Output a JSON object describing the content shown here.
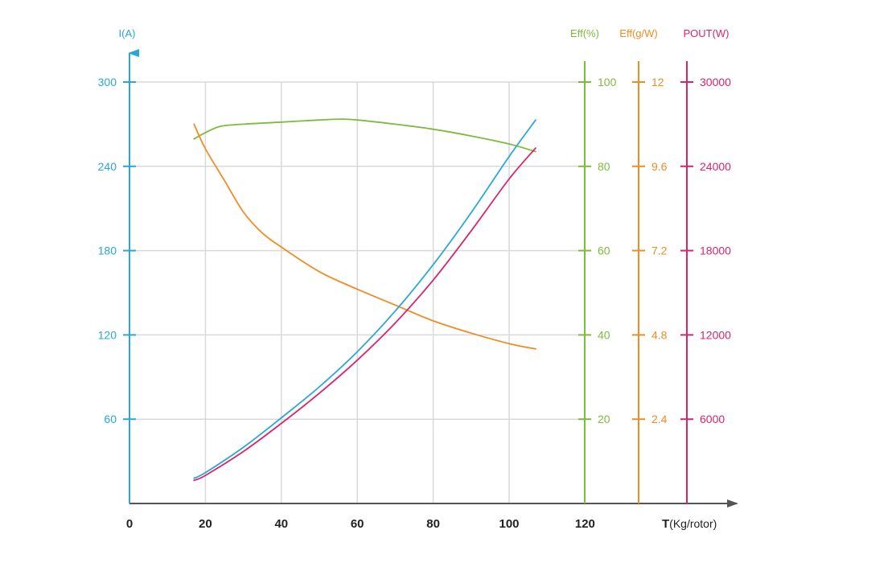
{
  "chart_data": {
    "type": "line",
    "title": "",
    "grid": true,
    "x_axis": {
      "label_bold": "T",
      "label_unit": "(Kg/rotor)",
      "ticks": [
        "0",
        "20",
        "40",
        "60",
        "80",
        "100",
        "120"
      ],
      "range": [
        0,
        120
      ]
    },
    "y_axes": [
      {
        "id": "I",
        "label": "I(A)",
        "color": "#2aa7d8",
        "range": [
          0,
          300
        ],
        "ticks": [
          "60",
          "120",
          "180",
          "240",
          "300"
        ]
      },
      {
        "id": "effp",
        "label": "Eff(%)",
        "color": "#7dbb3c",
        "range": [
          0,
          100
        ],
        "ticks": [
          "20",
          "40",
          "60",
          "80",
          "100"
        ]
      },
      {
        "id": "effg",
        "label": "Eff(g/W)",
        "color": "#f08c26",
        "range": [
          0,
          12
        ],
        "ticks": [
          "2.4",
          "4.8",
          "7.2",
          "9.6",
          "12"
        ]
      },
      {
        "id": "pout",
        "label": "POUT(W)",
        "color": "#d8246e",
        "range": [
          0,
          30000
        ],
        "ticks": [
          "6000",
          "12000",
          "18000",
          "24000",
          "30000"
        ]
      }
    ],
    "series": [
      {
        "axis": "effp",
        "color": "#7dbb3c",
        "x": [
          17,
          20,
          24,
          30,
          40,
          50,
          56,
          60,
          70,
          80,
          90,
          100,
          107
        ],
        "y": [
          86.5,
          88,
          89.5,
          90,
          90.5,
          91,
          91.2,
          91,
          90,
          88.8,
          87.2,
          85.3,
          83.5
        ]
      },
      {
        "axis": "effg",
        "color": "#f08c26",
        "x": [
          17,
          20,
          25,
          30,
          35,
          40,
          50,
          60,
          70,
          80,
          90,
          100,
          107
        ],
        "y": [
          10.8,
          10.1,
          9.2,
          8.3,
          7.7,
          7.3,
          6.6,
          6.1,
          5.65,
          5.2,
          4.85,
          4.55,
          4.4
        ]
      },
      {
        "axis": "I",
        "color": "#2aa7d8",
        "x": [
          17,
          20,
          30,
          40,
          50,
          60,
          70,
          80,
          90,
          100,
          107
        ],
        "y": [
          18,
          22,
          40,
          61,
          83,
          108,
          137,
          170,
          207,
          247,
          273
        ]
      },
      {
        "axis": "pout",
        "color": "#d8246e",
        "x": [
          17,
          20,
          30,
          40,
          50,
          60,
          70,
          80,
          90,
          100,
          107
        ],
        "y": [
          1650,
          2000,
          3700,
          5700,
          7850,
          10200,
          12850,
          15900,
          19400,
          23100,
          25300
        ]
      }
    ]
  }
}
